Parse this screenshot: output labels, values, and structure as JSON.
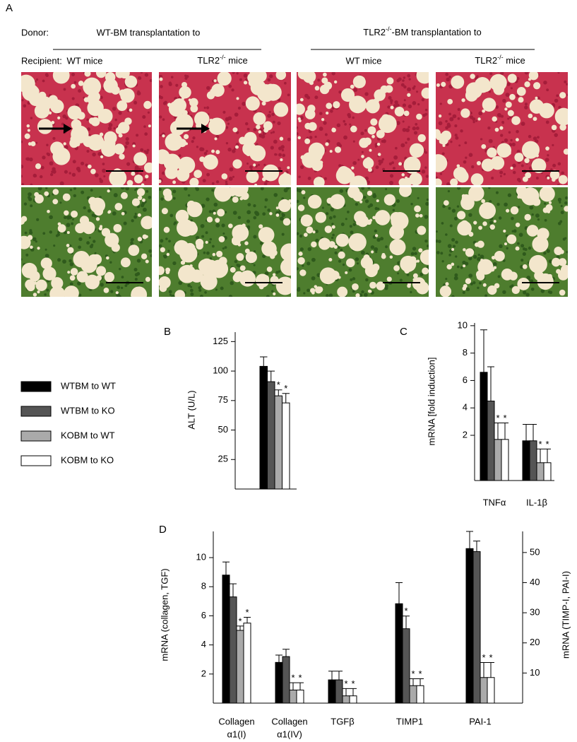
{
  "panel_a": {
    "label": "A",
    "donor_label": "Donor:",
    "recipient_label": "Recipient:",
    "donors": [
      "WT-BM transplantation to",
      {
        "base": "TLR2",
        "sup": "-/-",
        "rest": "-BM transplantation to"
      }
    ],
    "recipients": [
      "WT mice",
      {
        "base": "TLR2",
        "sup": "-/-",
        "rest": " mice"
      },
      "WT mice",
      {
        "base": "TLR2",
        "sup": "-/-",
        "rest": " mice"
      }
    ]
  },
  "legend": [
    {
      "name": "WTBM to WT",
      "color": "#000000"
    },
    {
      "name": "WTBM to KO",
      "color": "#555555"
    },
    {
      "name": "KOBM to WT",
      "color": "#aaaaaa"
    },
    {
      "name": "KOBM to KO",
      "color": "#ffffff"
    }
  ],
  "chart_data": [
    {
      "type": "bar",
      "label": "B",
      "y_label": "ALT (U/L)",
      "categories": [
        null
      ],
      "ylim": [
        0,
        133
      ],
      "yticks": [
        25,
        50,
        75,
        100,
        125
      ],
      "series": [
        {
          "color": "#000000",
          "values": [
            104
          ],
          "errors": [
            8
          ]
        },
        {
          "color": "#555555",
          "values": [
            91
          ],
          "errors": [
            9
          ]
        },
        {
          "color": "#aaaaaa",
          "values": [
            79
          ],
          "errors": [
            5
          ]
        },
        {
          "color": "#ffffff",
          "values": [
            73
          ],
          "errors": [
            8
          ]
        }
      ],
      "annotations": [
        {
          "text": "*",
          "series": 2,
          "category": 0
        },
        {
          "text": "*",
          "series": 3,
          "category": 0
        }
      ]
    },
    {
      "type": "bar",
      "label": "C",
      "y_label": "mRNA [fold induction]",
      "categories": [
        "TNFα",
        "IL-1β"
      ],
      "ylim": [
        -1.3,
        10.2
      ],
      "yticks": [
        2,
        4,
        6,
        8,
        10
      ],
      "series": [
        {
          "color": "#000000",
          "values": [
            6.6,
            1.6
          ],
          "errors": [
            3.1,
            1.2
          ]
        },
        {
          "color": "#555555",
          "values": [
            4.5,
            1.6
          ],
          "errors": [
            2.5,
            1.2
          ]
        },
        {
          "color": "#aaaaaa",
          "values": [
            1.7,
            0.0
          ],
          "errors": [
            1.2,
            1.0
          ]
        },
        {
          "color": "#ffffff",
          "values": [
            1.7,
            0.0
          ],
          "errors": [
            1.2,
            1.0
          ]
        }
      ],
      "annotations": [
        {
          "text": "*",
          "series": 2,
          "category": 0
        },
        {
          "text": "*",
          "series": 3,
          "category": 0
        },
        {
          "text": "*",
          "series": 2,
          "category": 1
        },
        {
          "text": "*",
          "series": 3,
          "category": 1
        }
      ]
    },
    {
      "type": "bar",
      "label": "D",
      "y_label": "mRNA  (collagen, TGF)",
      "y2_label": "mRNA (TIMP-I, PAI-I)",
      "categories": [
        [
          "Collagen",
          "α1(I)"
        ],
        [
          "Collagen",
          "α1(IV)"
        ],
        [
          "TGFβ"
        ],
        [
          "TIMP1"
        ],
        [
          "PAI-1"
        ]
      ],
      "ylim": [
        0,
        11.8
      ],
      "yticks": [
        2,
        4,
        6,
        8,
        10
      ],
      "y2lim": [
        0,
        57
      ],
      "y2ticks": [
        10,
        20,
        30,
        40,
        50
      ],
      "series": [
        {
          "color": "#000000",
          "values": [
            8.8,
            2.8,
            1.6,
            null,
            null
          ],
          "errors": [
            0.9,
            0.5,
            0.6,
            null,
            null
          ]
        },
        {
          "color": "#555555",
          "values": [
            7.3,
            3.2,
            1.6,
            null,
            null
          ],
          "errors": [
            0.9,
            0.5,
            0.6,
            null,
            null
          ]
        },
        {
          "color": "#aaaaaa",
          "values": [
            5.0,
            0.9,
            0.5,
            null,
            null
          ],
          "errors": [
            0.3,
            0.5,
            0.5,
            null,
            null
          ]
        },
        {
          "color": "#ffffff",
          "values": [
            5.5,
            0.9,
            0.5,
            null,
            null
          ],
          "errors": [
            0.4,
            0.5,
            0.5,
            null,
            null
          ]
        },
        {
          "color": "#000000",
          "axis": "y2",
          "values": [
            null,
            null,
            null,
            33,
            51.3
          ],
          "errors": [
            null,
            null,
            null,
            7,
            5.7
          ]
        },
        {
          "color": "#555555",
          "axis": "y2",
          "values": [
            null,
            null,
            null,
            24.7,
            50.3
          ],
          "errors": [
            null,
            null,
            null,
            4.2,
            3.5
          ]
        },
        {
          "color": "#aaaaaa",
          "axis": "y2",
          "values": [
            null,
            null,
            null,
            5.8,
            8.5
          ],
          "errors": [
            null,
            null,
            null,
            2.3,
            5
          ]
        },
        {
          "color": "#ffffff",
          "axis": "y2",
          "values": [
            null,
            null,
            null,
            5.8,
            8.5
          ],
          "errors": [
            null,
            null,
            null,
            2.3,
            5
          ]
        }
      ],
      "annotations": [
        {
          "text": "*",
          "series": 2,
          "category": 0
        },
        {
          "text": "*",
          "series": 3,
          "category": 0
        },
        {
          "text": "*",
          "series": 2,
          "category": 1
        },
        {
          "text": "*",
          "series": 3,
          "category": 1
        },
        {
          "text": "*",
          "series": 2,
          "category": 2
        },
        {
          "text": "*",
          "series": 3,
          "category": 2
        },
        {
          "text": "*",
          "series": 5,
          "category": 3
        },
        {
          "text": "*",
          "series": 6,
          "category": 3
        },
        {
          "text": "*",
          "series": 7,
          "category": 3
        },
        {
          "text": "*",
          "series": 6,
          "category": 4
        },
        {
          "text": "*",
          "series": 7,
          "category": 4
        }
      ]
    }
  ]
}
